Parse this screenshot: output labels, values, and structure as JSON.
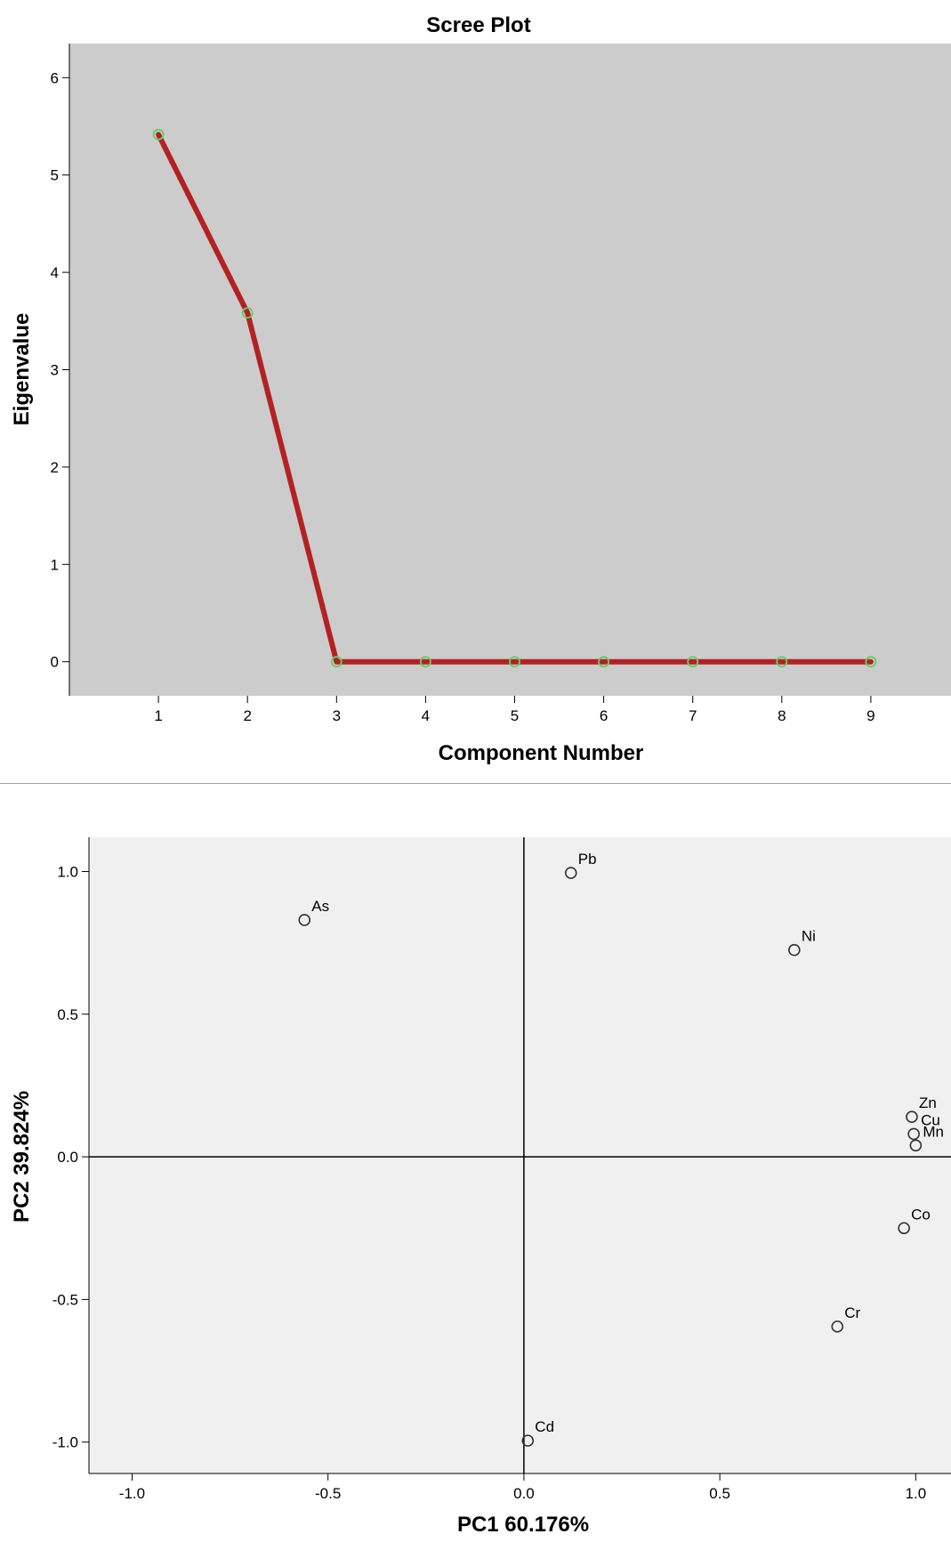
{
  "chart_data": [
    {
      "type": "line",
      "title": "Scree Plot",
      "xlabel": "Component Number",
      "ylabel": "Eigenvalue",
      "x": [
        1,
        2,
        3,
        4,
        5,
        6,
        7,
        8,
        9
      ],
      "series": [
        {
          "values": [
            5.416,
            3.584,
            0,
            0,
            0,
            0,
            0,
            0,
            0
          ]
        }
      ],
      "xlim": [
        0.0,
        9.9
      ],
      "ylim": [
        -0.35,
        6.35
      ],
      "xticks": [
        1,
        2,
        3,
        4,
        5,
        6,
        7,
        8,
        9
      ],
      "yticks": [
        0,
        1,
        2,
        3,
        4,
        5,
        6
      ],
      "grid": false,
      "colors": {
        "plot_bg": "#cccccc",
        "line": "#b22222",
        "marker": "#66cc66"
      }
    },
    {
      "type": "scatter",
      "title": "",
      "xlabel": "PC1 60.176%",
      "ylabel": "PC2 39.824%",
      "xlim": [
        -1.11,
        1.09
      ],
      "ylim": [
        -1.11,
        1.12
      ],
      "xticks": [
        "-1.0",
        "-0.5",
        "0.0",
        "0.5",
        "1.0"
      ],
      "yticks": [
        "1.0",
        "0.5",
        "0.0",
        "-0.5",
        "-1.0"
      ],
      "points": [
        {
          "label": "As",
          "x": -0.56,
          "y": 0.83
        },
        {
          "label": "Pb",
          "x": 0.12,
          "y": 0.995
        },
        {
          "label": "Ni",
          "x": 0.69,
          "y": 0.725
        },
        {
          "label": "Zn",
          "x": 0.99,
          "y": 0.14
        },
        {
          "label": "Cu",
          "x": 0.995,
          "y": 0.08
        },
        {
          "label": "Mn",
          "x": 1.0,
          "y": 0.04
        },
        {
          "label": "Co",
          "x": 0.97,
          "y": -0.25
        },
        {
          "label": "Cr",
          "x": 0.8,
          "y": -0.595
        },
        {
          "label": "Cd",
          "x": 0.01,
          "y": -0.995
        }
      ],
      "reference_lines": {
        "x0": true,
        "y0": true
      },
      "grid": false,
      "colors": {
        "plot_bg": "#f0f0f0",
        "marker": "#333333"
      }
    }
  ]
}
